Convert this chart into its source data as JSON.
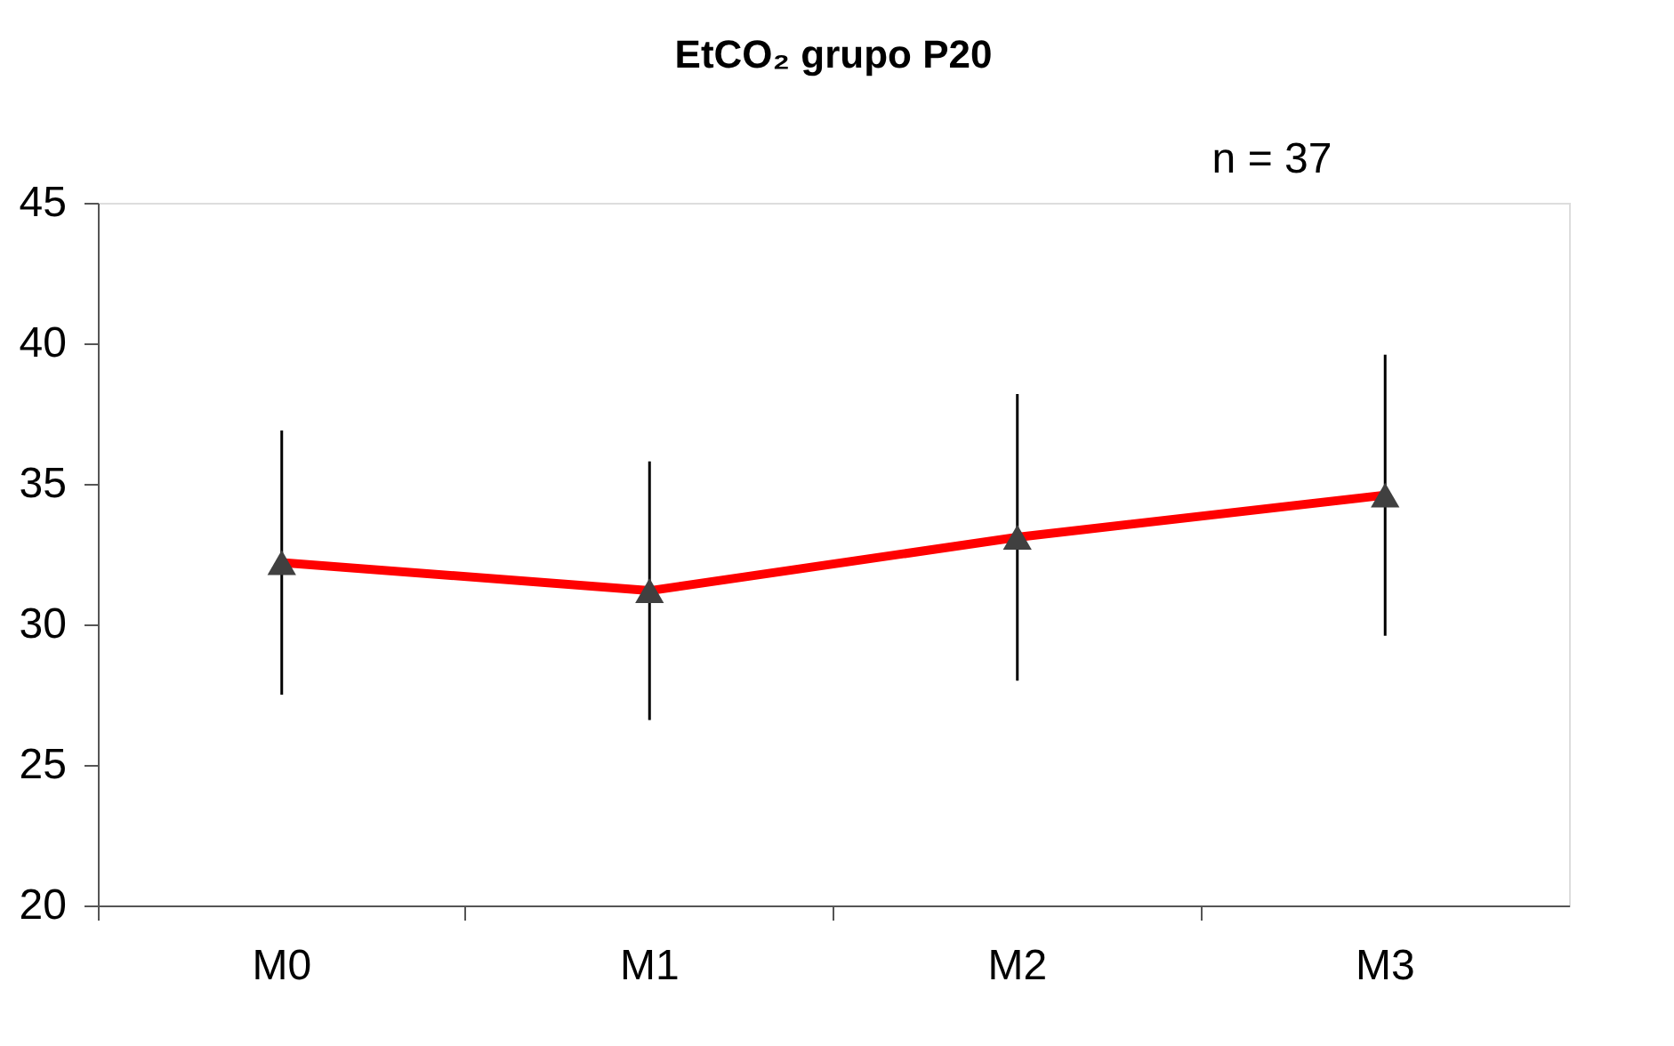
{
  "chart_data": {
    "type": "line",
    "title": "EtCO₂  grupo P20",
    "annotations": [
      "n = 37"
    ],
    "categories": [
      "M0",
      "M1",
      "M2",
      "M3"
    ],
    "series": [
      {
        "color": "#ff0000",
        "values": [
          32.2,
          31.2,
          33.1,
          34.6
        ],
        "errors": [
          4.7,
          4.6,
          5.1,
          5.0
        ]
      }
    ],
    "ylim": [
      20,
      45
    ],
    "yticks": [
      20,
      25,
      30,
      35,
      40,
      45
    ],
    "grid": false,
    "marker": "triangle",
    "line_style": "solid"
  }
}
